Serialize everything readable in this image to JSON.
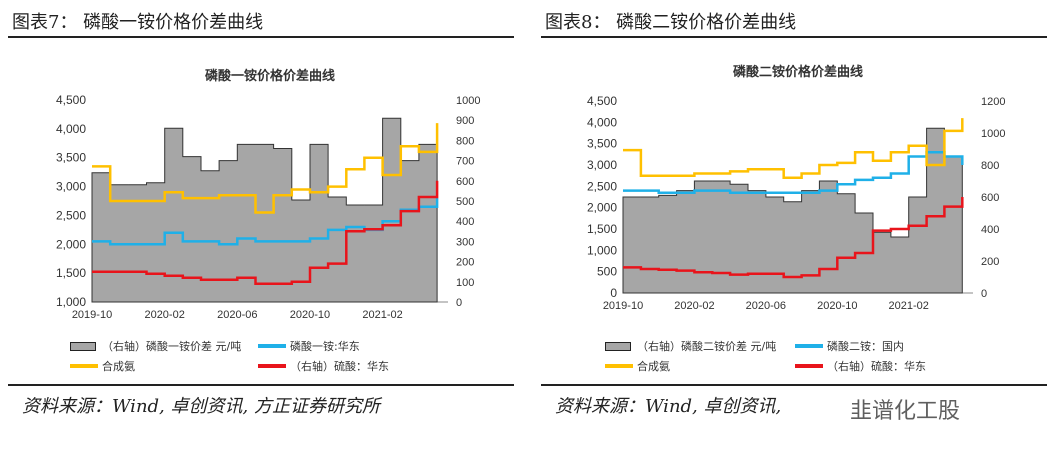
{
  "figures": [
    {
      "label": "图表7：  磷酸一铵价格价差曲线",
      "source": "资料来源：Wind, 卓创资讯, 方正证券研究所"
    },
    {
      "label": "图表8：  磷酸二铵价格价差曲线",
      "source": "资料来源：Wind, 卓创资讯,"
    }
  ],
  "watermark": "韭谱化工股",
  "chart_data": [
    {
      "type": "line",
      "title": "磷酸一铵价格价差曲线",
      "x": [
        "2019-10",
        "2019-11",
        "2019-12",
        "2020-01",
        "2020-02",
        "2020-03",
        "2020-04",
        "2020-05",
        "2020-06",
        "2020-07",
        "2020-08",
        "2020-09",
        "2020-10",
        "2020-11",
        "2020-12",
        "2021-01",
        "2021-02",
        "2021-03",
        "2021-04",
        "2021-05"
      ],
      "xticks": [
        "2019-10",
        "2020-02",
        "2020-06",
        "2020-10",
        "2021-02"
      ],
      "ylim": [
        1000,
        4500
      ],
      "yticks": [
        "1,000",
        "1,500",
        "2,000",
        "2,500",
        "3,000",
        "3,500",
        "4,000",
        "4,500"
      ],
      "y2lim": [
        0,
        1000
      ],
      "y2ticks": [
        "0",
        "100",
        "200",
        "300",
        "400",
        "500",
        "600",
        "700",
        "800",
        "900",
        "1000"
      ],
      "series": [
        {
          "name": "（右轴）磷酸一铵价差 元/吨",
          "axis": "right",
          "kind": "area",
          "color": "#a6a6a6",
          "values": [
            640,
            580,
            580,
            590,
            860,
            720,
            650,
            700,
            780,
            780,
            760,
            505,
            780,
            520,
            480,
            480,
            910,
            700,
            780,
            650
          ]
        },
        {
          "name": "磷酸一铵:华东",
          "axis": "left",
          "kind": "line",
          "color": "#1fb0e8",
          "values": [
            2050,
            2000,
            2000,
            2000,
            2200,
            2050,
            2050,
            2000,
            2100,
            2050,
            2050,
            2050,
            2100,
            2250,
            2300,
            2250,
            2400,
            2600,
            2650,
            2800
          ]
        },
        {
          "name": "合成氨",
          "axis": "left",
          "kind": "line",
          "color": "#ffc000",
          "values": [
            3350,
            2750,
            2750,
            2750,
            2900,
            2800,
            2800,
            2850,
            2850,
            2550,
            2850,
            2950,
            2900,
            3000,
            3300,
            3500,
            3200,
            3700,
            3600,
            4100
          ]
        },
        {
          "name": "（右轴）硫酸：华东",
          "axis": "right",
          "kind": "line",
          "color": "#e8141b",
          "values": [
            150,
            150,
            150,
            140,
            130,
            120,
            110,
            110,
            120,
            90,
            90,
            100,
            170,
            190,
            350,
            360,
            380,
            450,
            520,
            600
          ]
        }
      ]
    },
    {
      "type": "line",
      "title": "磷酸二铵价格价差曲线",
      "x": [
        "2019-10",
        "2019-11",
        "2019-12",
        "2020-01",
        "2020-02",
        "2020-03",
        "2020-04",
        "2020-05",
        "2020-06",
        "2020-07",
        "2020-08",
        "2020-09",
        "2020-10",
        "2020-11",
        "2020-12",
        "2021-01",
        "2021-02",
        "2021-03",
        "2021-04",
        "2021-05"
      ],
      "xticks": [
        "2019-10",
        "2020-02",
        "2020-06",
        "2020-10",
        "2021-02"
      ],
      "ylim": [
        0,
        4500
      ],
      "yticks": [
        "0",
        "500",
        "1,000",
        "1,500",
        "2,000",
        "2,500",
        "3,000",
        "3,500",
        "4,000",
        "4,500"
      ],
      "y2lim": [
        0,
        1200
      ],
      "y2ticks": [
        "0",
        "200",
        "400",
        "600",
        "800",
        "1000",
        "1200"
      ],
      "series": [
        {
          "name": "（右轴）磷酸二铵价差 元/吨",
          "axis": "right",
          "kind": "area",
          "color": "#a6a6a6",
          "values": [
            600,
            600,
            610,
            640,
            700,
            700,
            680,
            640,
            600,
            570,
            640,
            700,
            620,
            500,
            380,
            350,
            600,
            1030,
            850,
            700
          ]
        },
        {
          "name": "磷酸二铵：国内",
          "axis": "left",
          "kind": "line",
          "color": "#1fb0e8",
          "values": [
            2400,
            2400,
            2350,
            2350,
            2400,
            2400,
            2350,
            2350,
            2350,
            2350,
            2350,
            2400,
            2550,
            2650,
            2700,
            2800,
            3200,
            3300,
            3200,
            3000
          ]
        },
        {
          "name": "合成氨",
          "axis": "left",
          "kind": "line",
          "color": "#ffc000",
          "values": [
            3350,
            2750,
            2750,
            2750,
            2800,
            2800,
            2850,
            2900,
            2900,
            2700,
            2800,
            3000,
            3050,
            3300,
            3100,
            3300,
            3450,
            3000,
            3800,
            4100
          ]
        },
        {
          "name": "（右轴）硫酸：华东",
          "axis": "right",
          "kind": "line",
          "color": "#e8141b",
          "values": [
            160,
            150,
            145,
            140,
            130,
            125,
            115,
            120,
            120,
            100,
            110,
            150,
            220,
            250,
            390,
            400,
            420,
            480,
            540,
            600
          ]
        }
      ]
    }
  ]
}
